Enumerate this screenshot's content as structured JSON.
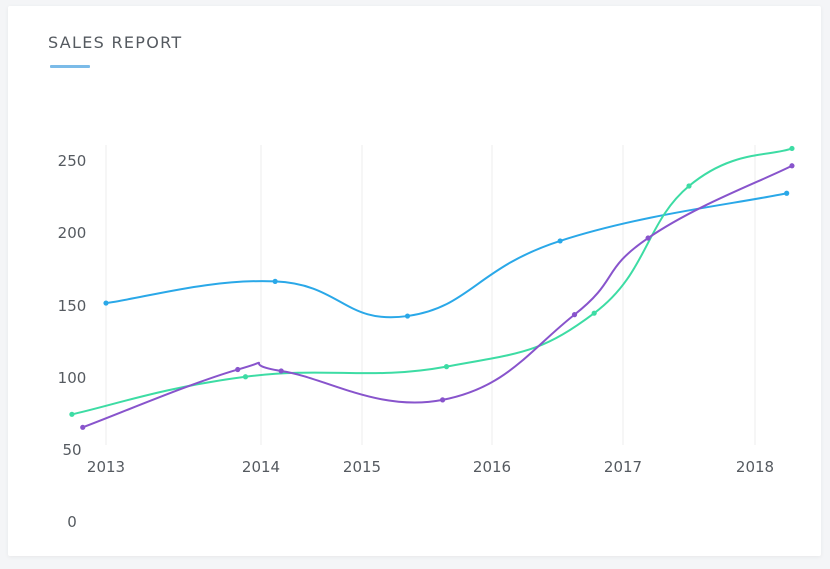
{
  "header": {
    "title": "SALES REPORT"
  },
  "chart_data": {
    "type": "line",
    "title": "SALES REPORT",
    "xlabel": "",
    "ylabel": "",
    "x_ticks": [
      "2013",
      "2014",
      "2015",
      "2016",
      "2017",
      "2018"
    ],
    "y_ticks": [
      "0",
      "50",
      "100",
      "150",
      "200",
      "250"
    ],
    "ylim": [
      50,
      250
    ],
    "grid": "vertical",
    "legend": "none",
    "series": [
      {
        "color": "#2aa8e8",
        "points": [
          [
            2013.0,
            151
          ],
          [
            2014.14,
            166
          ],
          [
            2015.35,
            142
          ],
          [
            2016.52,
            194
          ],
          [
            2018.24,
            227
          ]
        ]
      },
      {
        "color": "#3ddca4",
        "points": [
          [
            2012.78,
            74
          ],
          [
            2013.9,
            100
          ],
          [
            2015.65,
            107
          ],
          [
            2016.78,
            144
          ],
          [
            2017.5,
            232
          ],
          [
            2018.28,
            258
          ]
        ]
      },
      {
        "color": "#8854cc",
        "points": [
          [
            2012.85,
            65
          ],
          [
            2013.85,
            105
          ],
          [
            2014.2,
            104
          ],
          [
            2015.62,
            84
          ],
          [
            2016.63,
            143
          ],
          [
            2017.19,
            196
          ],
          [
            2018.28,
            246
          ]
        ]
      }
    ]
  }
}
